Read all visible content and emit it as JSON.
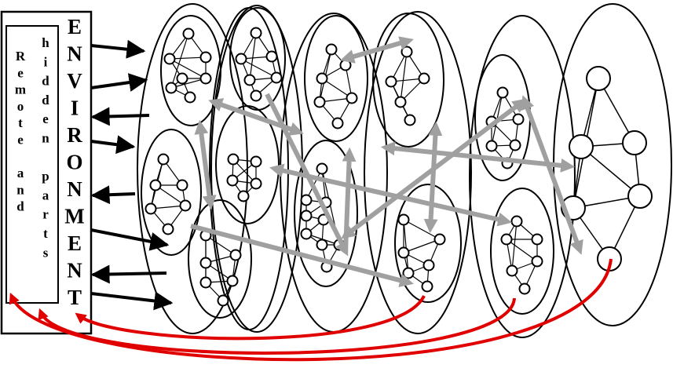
{
  "labels": {
    "environment_letters": [
      "E",
      "N",
      "V",
      "I",
      "R",
      "O",
      "N",
      "M",
      "E",
      "N",
      "T"
    ],
    "remote_letters": [
      "R",
      "e",
      "m",
      "o",
      "t",
      "e",
      "",
      "a",
      "n",
      "d"
    ],
    "hidden_letters": [
      "h",
      "i",
      "d",
      "d",
      "e",
      "n",
      "",
      "p",
      "a",
      "r",
      "t",
      "s"
    ]
  },
  "colors": {
    "stroke": "#000000",
    "interaction_arrows": "#a0a0a0",
    "feedback_arrows": "#e00000",
    "background": "#ffffff"
  }
}
